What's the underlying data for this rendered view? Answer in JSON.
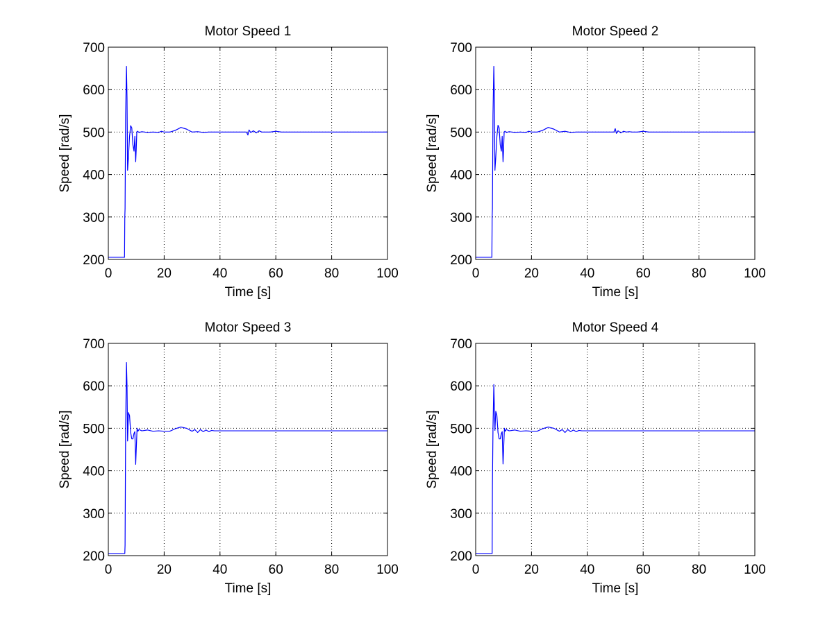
{
  "figure": {
    "background": "#ffffff",
    "line_color": "#0000ff"
  },
  "chart_data": [
    {
      "type": "line",
      "title": "Motor Speed 1",
      "xlabel": "Time [s]",
      "ylabel": "Speed [rad/s]",
      "xlim": [
        0,
        100
      ],
      "ylim": [
        200,
        700
      ],
      "xticks": [
        "0",
        "20",
        "40",
        "60",
        "80",
        "100"
      ],
      "yticks": [
        "200",
        "300",
        "400",
        "500",
        "600",
        "700"
      ],
      "grid": true,
      "series": [
        {
          "color": "#0000ff",
          "x": [
            0,
            5.8,
            5.9,
            6.0,
            6.2,
            6.5,
            6.7,
            6.9,
            7.2,
            7.6,
            8.0,
            8.4,
            8.8,
            9.2,
            9.5,
            9.8,
            10.0,
            10.2,
            10.5,
            11.0,
            12,
            14,
            16,
            18,
            19,
            20,
            22,
            24,
            26,
            28,
            30,
            32,
            34,
            36,
            38,
            40,
            45,
            49.5,
            50,
            50.4,
            51,
            52,
            53,
            54,
            55,
            56,
            58,
            60,
            62,
            70,
            80,
            90,
            100
          ],
          "y": [
            205,
            205,
            300,
            320,
            540,
            655,
            580,
            410,
            440,
            490,
            515,
            510,
            470,
            455,
            490,
            430,
            460,
            500,
            502,
            499,
            501,
            499,
            500,
            499,
            502,
            500,
            500,
            504,
            511,
            507,
            500,
            501,
            499,
            500,
            500,
            500,
            500,
            500,
            493,
            505,
            499,
            503,
            498,
            503,
            500,
            500,
            500,
            502,
            500,
            500,
            500,
            500,
            500
          ]
        }
      ]
    },
    {
      "type": "line",
      "title": "Motor Speed 2",
      "xlabel": "Time [s]",
      "ylabel": "Speed [rad/s]",
      "xlim": [
        0,
        100
      ],
      "ylim": [
        200,
        700
      ],
      "xticks": [
        "0",
        "20",
        "40",
        "60",
        "80",
        "100"
      ],
      "yticks": [
        "200",
        "300",
        "400",
        "500",
        "600",
        "700"
      ],
      "grid": true,
      "series": [
        {
          "color": "#0000ff",
          "x": [
            0,
            5.8,
            5.9,
            6.0,
            6.2,
            6.5,
            6.7,
            6.9,
            7.2,
            7.6,
            8.0,
            8.4,
            8.8,
            9.2,
            9.5,
            9.8,
            10.0,
            10.2,
            10.5,
            11.0,
            12,
            14,
            16,
            18,
            19,
            20,
            22,
            24,
            26,
            28,
            30,
            32,
            34,
            36,
            38,
            40,
            45,
            49.5,
            50,
            50.4,
            51,
            52,
            53,
            54,
            55,
            56,
            58,
            60,
            62,
            70,
            80,
            90,
            100
          ],
          "y": [
            205,
            205,
            300,
            320,
            540,
            655,
            580,
            410,
            440,
            490,
            516,
            510,
            470,
            455,
            490,
            430,
            460,
            500,
            502,
            499,
            501,
            499,
            500,
            499,
            502,
            500,
            500,
            504,
            511,
            507,
            500,
            502,
            499,
            500,
            500,
            500,
            500,
            500,
            508,
            497,
            503,
            498,
            502,
            500,
            501,
            500,
            500,
            502,
            500,
            500,
            500,
            500,
            500
          ]
        }
      ]
    },
    {
      "type": "line",
      "title": "Motor Speed 3",
      "xlabel": "Time [s]",
      "ylabel": "Speed [rad/s]",
      "xlim": [
        0,
        100
      ],
      "ylim": [
        200,
        700
      ],
      "xticks": [
        "0",
        "20",
        "40",
        "60",
        "80",
        "100"
      ],
      "yticks": [
        "200",
        "300",
        "400",
        "500",
        "600",
        "700"
      ],
      "grid": true,
      "series": [
        {
          "color": "#0000ff",
          "x": [
            0,
            5.9,
            6.0,
            6.2,
            6.5,
            6.7,
            6.9,
            7.2,
            7.6,
            8.0,
            8.4,
            8.8,
            9.2,
            9.5,
            9.8,
            10.0,
            10.3,
            10.6,
            11.0,
            12,
            14,
            16,
            18,
            20,
            22,
            24,
            26,
            28,
            30,
            31,
            32,
            33,
            34,
            35,
            36,
            37,
            38,
            40,
            45,
            50,
            55,
            60,
            70,
            80,
            90,
            100
          ],
          "y": [
            205,
            205,
            225,
            500,
            655,
            600,
            470,
            537,
            530,
            490,
            475,
            475,
            488,
            492,
            415,
            450,
            500,
            493,
            497,
            494,
            496,
            493,
            494,
            493,
            493,
            499,
            503,
            500,
            493,
            497,
            490,
            497,
            492,
            496,
            492,
            495,
            494,
            494,
            494,
            494,
            494,
            494,
            494,
            494,
            494,
            494
          ]
        }
      ]
    },
    {
      "type": "line",
      "title": "Motor Speed 4",
      "xlabel": "Time [s]",
      "ylabel": "Speed [rad/s]",
      "xlim": [
        0,
        100
      ],
      "ylim": [
        200,
        700
      ],
      "xticks": [
        "0",
        "20",
        "40",
        "60",
        "80",
        "100"
      ],
      "yticks": [
        "200",
        "300",
        "400",
        "500",
        "600",
        "700"
      ],
      "grid": true,
      "series": [
        {
          "color": "#0000ff",
          "x": [
            0,
            5.9,
            6.0,
            6.2,
            6.5,
            6.7,
            6.9,
            7.2,
            7.6,
            8.0,
            8.4,
            8.8,
            9.2,
            9.5,
            9.8,
            10.0,
            10.3,
            10.6,
            11.0,
            12,
            14,
            16,
            18,
            20,
            22,
            24,
            26,
            28,
            30,
            31,
            32,
            33,
            34,
            35,
            36,
            37,
            38,
            40,
            45,
            50,
            55,
            60,
            70,
            80,
            90,
            100
          ],
          "y": [
            205,
            205,
            365,
            500,
            603,
            545,
            495,
            540,
            530,
            490,
            475,
            475,
            488,
            492,
            416,
            450,
            500,
            493,
            497,
            494,
            496,
            493,
            494,
            493,
            493,
            499,
            503,
            500,
            493,
            497,
            490,
            497,
            492,
            496,
            492,
            495,
            494,
            494,
            494,
            494,
            494,
            494,
            494,
            494,
            494,
            494
          ]
        }
      ]
    }
  ]
}
